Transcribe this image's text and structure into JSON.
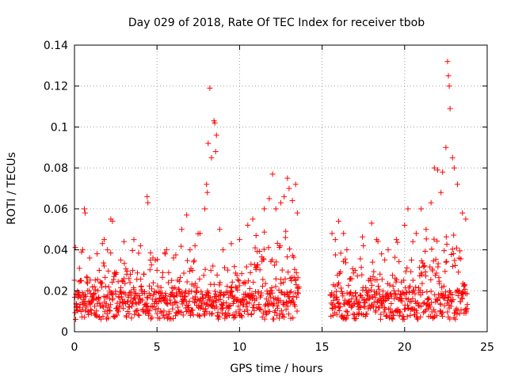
{
  "chart_data": {
    "type": "scatter",
    "title": "Day 029 of 2018, Rate Of TEC Index for receiver tbob",
    "xlabel": "GPS time / hours",
    "ylabel": "ROTI / TECUs",
    "xlim": [
      0,
      25
    ],
    "ylim": [
      0,
      0.14
    ],
    "xticks": [
      0,
      5,
      10,
      15,
      20,
      25
    ],
    "xtick_labels": [
      "0",
      "5",
      "10",
      "15",
      "20",
      "25"
    ],
    "yticks": [
      0,
      0.02,
      0.04,
      0.06,
      0.08,
      0.1,
      0.12,
      0.14
    ],
    "ytick_labels": [
      "0",
      "0.02",
      "0.04",
      "0.06",
      "0.08",
      "0.1",
      "0.12",
      "0.14"
    ],
    "grid": true,
    "marker": "+",
    "color": "#ff0000",
    "series": [
      {
        "name": "ROTI",
        "points": [
          [
            0.1,
            0.012
          ],
          [
            0.2,
            0.018
          ],
          [
            0.3,
            0.031
          ],
          [
            0.4,
            0.025
          ],
          [
            0.5,
            0.04
          ],
          [
            0.6,
            0.06
          ],
          [
            0.65,
            0.058
          ],
          [
            0.8,
            0.02
          ],
          [
            1.0,
            0.014
          ],
          [
            1.2,
            0.022
          ],
          [
            1.5,
            0.03
          ],
          [
            1.8,
            0.045
          ],
          [
            2.0,
            0.04
          ],
          [
            2.2,
            0.055
          ],
          [
            2.3,
            0.054
          ],
          [
            2.5,
            0.028
          ],
          [
            2.8,
            0.035
          ],
          [
            3.0,
            0.044
          ],
          [
            3.3,
            0.026
          ],
          [
            3.6,
            0.045
          ],
          [
            4.0,
            0.042
          ],
          [
            4.4,
            0.066
          ],
          [
            4.45,
            0.063
          ],
          [
            4.6,
            0.035
          ],
          [
            5.0,
            0.03
          ],
          [
            5.5,
            0.038
          ],
          [
            6.0,
            0.036
          ],
          [
            6.5,
            0.05
          ],
          [
            6.8,
            0.057
          ],
          [
            7.0,
            0.04
          ],
          [
            7.3,
            0.042
          ],
          [
            7.6,
            0.048
          ],
          [
            7.9,
            0.06
          ],
          [
            8.0,
            0.072
          ],
          [
            8.05,
            0.068
          ],
          [
            8.1,
            0.092
          ],
          [
            8.2,
            0.119
          ],
          [
            8.3,
            0.085
          ],
          [
            8.45,
            0.103
          ],
          [
            8.5,
            0.102
          ],
          [
            8.6,
            0.096
          ],
          [
            8.55,
            0.088
          ],
          [
            8.8,
            0.05
          ],
          [
            9.0,
            0.04
          ],
          [
            9.5,
            0.043
          ],
          [
            10.0,
            0.045
          ],
          [
            10.5,
            0.052
          ],
          [
            10.8,
            0.055
          ],
          [
            11.0,
            0.047
          ],
          [
            11.5,
            0.06
          ],
          [
            11.8,
            0.065
          ],
          [
            12.0,
            0.077
          ],
          [
            12.2,
            0.06
          ],
          [
            12.5,
            0.063
          ],
          [
            12.7,
            0.066
          ],
          [
            12.9,
            0.075
          ],
          [
            13.0,
            0.07
          ],
          [
            13.2,
            0.064
          ],
          [
            13.4,
            0.072
          ],
          [
            13.5,
            0.058
          ],
          [
            15.6,
            0.048
          ],
          [
            15.8,
            0.045
          ],
          [
            16.0,
            0.054
          ],
          [
            16.3,
            0.048
          ],
          [
            16.5,
            0.04
          ],
          [
            17.0,
            0.03
          ],
          [
            17.5,
            0.042
          ],
          [
            18.0,
            0.053
          ],
          [
            18.3,
            0.045
          ],
          [
            18.6,
            0.038
          ],
          [
            19.0,
            0.04
          ],
          [
            19.5,
            0.045
          ],
          [
            20.0,
            0.052
          ],
          [
            20.2,
            0.06
          ],
          [
            20.5,
            0.044
          ],
          [
            20.7,
            0.048
          ],
          [
            21.0,
            0.06
          ],
          [
            21.3,
            0.05
          ],
          [
            21.6,
            0.063
          ],
          [
            21.8,
            0.08
          ],
          [
            22.0,
            0.079
          ],
          [
            22.2,
            0.068
          ],
          [
            22.3,
            0.078
          ],
          [
            22.5,
            0.09
          ],
          [
            22.6,
            0.132
          ],
          [
            22.65,
            0.125
          ],
          [
            22.7,
            0.12
          ],
          [
            22.75,
            0.109
          ],
          [
            22.9,
            0.085
          ],
          [
            23.0,
            0.08
          ],
          [
            23.2,
            0.072
          ],
          [
            23.5,
            0.058
          ],
          [
            23.7,
            0.055
          ]
        ]
      }
    ]
  }
}
